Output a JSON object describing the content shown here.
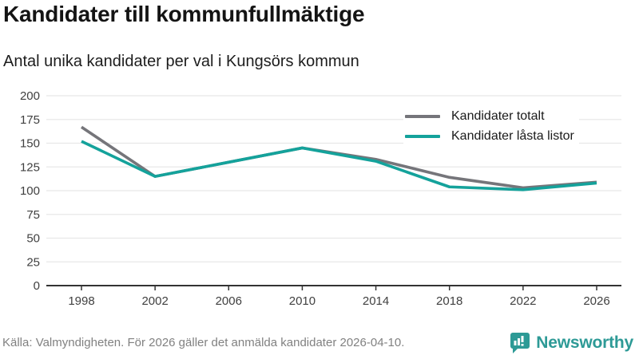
{
  "header": {
    "title": "Kandidater till kommunfullmäktige",
    "subtitle": "Antal unika kandidater per val i Kungsörs kommun"
  },
  "chart_data": {
    "type": "line",
    "x": [
      1998,
      2002,
      2006,
      2010,
      2014,
      2018,
      2022,
      2026
    ],
    "series": [
      {
        "name": "Kandidater totalt",
        "color": "#75757a",
        "values": [
          167,
          115,
          130,
          145,
          133,
          114,
          103,
          109
        ]
      },
      {
        "name": "Kandidater låsta listor",
        "color": "#14a29b",
        "values": [
          152,
          115,
          130,
          145,
          131,
          104,
          101,
          108
        ]
      }
    ],
    "title": "Kandidater till kommunfullmäktige",
    "subtitle": "Antal unika kandidater per val i Kungsörs kommun",
    "xlabel": "",
    "ylabel": "",
    "ylim": [
      0,
      200
    ],
    "ytick_step": 25,
    "grid": true,
    "legend_position": "top-right"
  },
  "footer": {
    "source": "Källa: Valmyndigheten. För 2026 gäller det anmälda kandidater 2026-04-10.",
    "brand": "Newsworthy"
  },
  "colors": {
    "grid": "#e8e8e8",
    "axis": "#333333",
    "tick_text": "#404040",
    "brand_teal": "#2d9a96"
  }
}
